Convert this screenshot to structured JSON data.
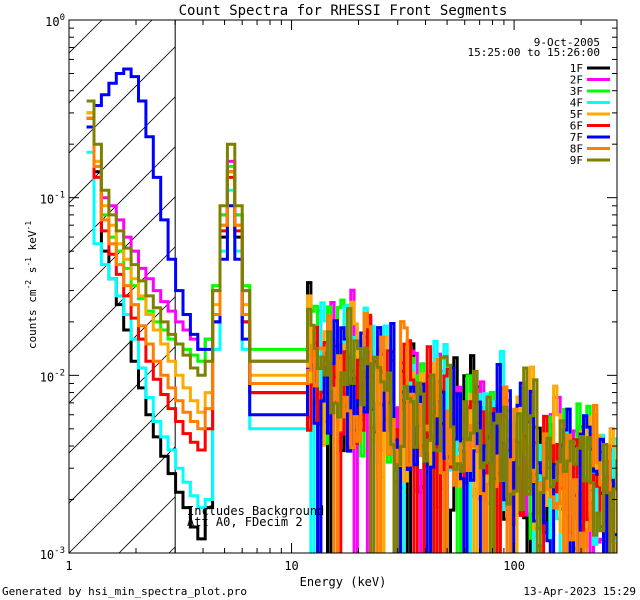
{
  "chart_data": {
    "type": "line",
    "title": "Count Spectra for RHESSI Front Segments",
    "xlabel": "Energy (keV)",
    "ylabel_main": "counts cm",
    "ylabel_sup1": "-2",
    "ylabel_mid": " s",
    "ylabel_sup2": "-1",
    "ylabel_end": " keV",
    "ylabel_sup3": "-1",
    "xscale": "log",
    "yscale": "log",
    "xlim": [
      1,
      290
    ],
    "ylim": [
      0.001,
      1.0
    ],
    "x_ticks": [
      {
        "value": 1,
        "label": "1"
      },
      {
        "value": 10,
        "label": "10"
      },
      {
        "value": 100,
        "label": "100"
      }
    ],
    "y_ticks": [
      {
        "value": 1,
        "base": "10",
        "exp": "0"
      },
      {
        "value": 0.1,
        "base": "10",
        "exp": "-1"
      },
      {
        "value": 0.01,
        "base": "10",
        "exp": "-2"
      },
      {
        "value": 0.001,
        "base": "10",
        "exp": "-3"
      }
    ],
    "date_line": "9-Oct-2005",
    "time_line": "15:25:00 to 15:26:00",
    "shaded_region": {
      "x_min": 1,
      "x_max": 3,
      "style": "diagonal hatch"
    },
    "annotation_line1": "Includes Background",
    "annotation_line2": "Att A0, FDecim 2",
    "legend_position": "top-right",
    "series": [
      {
        "name": "1F",
        "color": "#000000",
        "low": [
          0.28,
          0.14,
          0.05,
          0.035,
          0.025,
          0.018,
          0.012,
          0.0085,
          0.006,
          0.0045,
          0.0035,
          0.0028,
          0.0022,
          0.0018,
          0.0014,
          0.0012,
          0.0018,
          0.02,
          0.06,
          0.14,
          0.06,
          0.02,
          0.008
        ]
      },
      {
        "name": "2F",
        "color": "#ff00ff",
        "low": [
          0.3,
          0.16,
          0.1,
          0.09,
          0.075,
          0.06,
          0.05,
          0.04,
          0.035,
          0.03,
          0.026,
          0.023,
          0.02,
          0.018,
          0.016,
          0.014,
          0.016,
          0.03,
          0.08,
          0.16,
          0.08,
          0.03,
          0.012
        ]
      },
      {
        "name": "3F",
        "color": "#00ff00",
        "low": [
          0.3,
          0.15,
          0.08,
          0.06,
          0.05,
          0.04,
          0.032,
          0.027,
          0.023,
          0.02,
          0.018,
          0.016,
          0.015,
          0.014,
          0.013,
          0.012,
          0.016,
          0.032,
          0.08,
          0.15,
          0.08,
          0.032,
          0.014
        ]
      },
      {
        "name": "4F",
        "color": "#00ffff",
        "low": [
          0.18,
          0.055,
          0.042,
          0.035,
          0.028,
          0.022,
          0.016,
          0.011,
          0.0075,
          0.0055,
          0.0045,
          0.0038,
          0.003,
          0.0025,
          0.0021,
          0.0018,
          0.002,
          0.014,
          0.05,
          0.11,
          0.05,
          0.014,
          0.005
        ]
      },
      {
        "name": "5F",
        "color": "#ffaa00",
        "low": [
          0.3,
          0.16,
          0.09,
          0.07,
          0.055,
          0.045,
          0.035,
          0.028,
          0.022,
          0.018,
          0.015,
          0.012,
          0.01,
          0.0085,
          0.0072,
          0.0062,
          0.008,
          0.025,
          0.07,
          0.14,
          0.07,
          0.025,
          0.01
        ]
      },
      {
        "name": "6F",
        "color": "#ff0000",
        "low": [
          0.25,
          0.13,
          0.065,
          0.048,
          0.037,
          0.028,
          0.021,
          0.016,
          0.012,
          0.0095,
          0.0078,
          0.0065,
          0.0055,
          0.0047,
          0.0042,
          0.0038,
          0.005,
          0.02,
          0.065,
          0.13,
          0.065,
          0.02,
          0.008
        ]
      },
      {
        "name": "7F",
        "color": "#0000ff",
        "low": [
          0.25,
          0.33,
          0.38,
          0.44,
          0.5,
          0.53,
          0.48,
          0.35,
          0.22,
          0.13,
          0.075,
          0.045,
          0.03,
          0.022,
          0.017,
          0.014,
          0.014,
          0.02,
          0.045,
          0.09,
          0.045,
          0.016,
          0.006
        ]
      },
      {
        "name": "8F",
        "color": "#ff8000",
        "low": [
          0.28,
          0.15,
          0.075,
          0.055,
          0.042,
          0.032,
          0.025,
          0.019,
          0.015,
          0.012,
          0.01,
          0.0085,
          0.0072,
          0.0062,
          0.0055,
          0.005,
          0.0065,
          0.022,
          0.07,
          0.14,
          0.07,
          0.022,
          0.009
        ]
      },
      {
        "name": "9F",
        "color": "#808000",
        "low": [
          0.35,
          0.2,
          0.11,
          0.08,
          0.065,
          0.052,
          0.042,
          0.034,
          0.028,
          0.024,
          0.02,
          0.017,
          0.015,
          0.013,
          0.011,
          0.01,
          0.012,
          0.03,
          0.09,
          0.2,
          0.09,
          0.03,
          0.012
        ]
      }
    ]
  },
  "footer": {
    "generated_by": "Generated by hsi_min_spectra_plot.pro",
    "timestamp": "13-Apr-2023 15:29"
  }
}
